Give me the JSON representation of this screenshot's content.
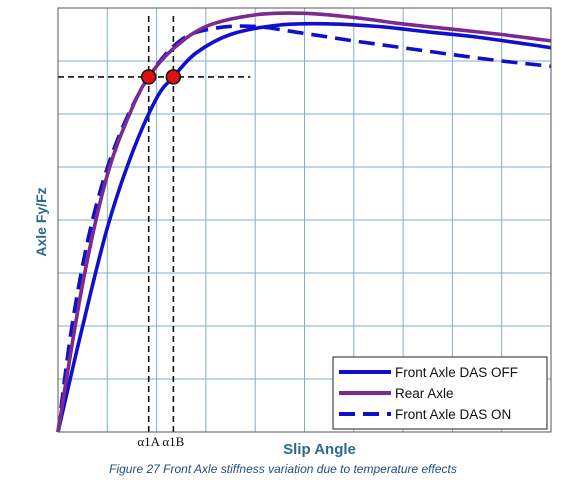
{
  "caption": "Figure 27 Front Axle stiffness variation due to temperature effects",
  "chart_data": {
    "type": "line",
    "title": "",
    "xlabel": "Slip Angle",
    "ylabel": "Axle Fy/Fz",
    "xlim": [
      0,
      10
    ],
    "ylim": [
      0,
      8
    ],
    "grid": true,
    "legend_position": "bottom-right",
    "x_tick_labels": [
      "α1A",
      "α1B"
    ],
    "markers": [
      {
        "name": "alpha-1A-point",
        "x": 1.84,
        "y": 6.7,
        "color": "#dd1111",
        "label": "α1A"
      },
      {
        "name": "alpha-1B-point",
        "x": 2.34,
        "y": 6.7,
        "color": "#dd1111",
        "label": "α1B"
      }
    ],
    "reference_y": 6.7,
    "series": [
      {
        "name": "Front Axle DAS OFF",
        "color": "#1010cc",
        "style": "solid",
        "x": [
          0,
          0.5,
          1.0,
          1.5,
          2.0,
          2.34,
          2.8,
          3.5,
          4.5,
          5.5,
          6.5,
          7.5,
          8.5,
          9.5,
          10
        ],
        "y": [
          0,
          2.0,
          3.85,
          5.25,
          6.3,
          6.7,
          7.15,
          7.5,
          7.68,
          7.7,
          7.65,
          7.55,
          7.45,
          7.32,
          7.25
        ]
      },
      {
        "name": "Rear Axle",
        "color": "#7a2a90",
        "style": "solid",
        "x": [
          0,
          0.5,
          1.0,
          1.5,
          1.84,
          2.3,
          3.0,
          4.0,
          5.0,
          6.0,
          7.0,
          8.0,
          9.0,
          10
        ],
        "y": [
          0,
          2.8,
          4.85,
          6.1,
          6.7,
          7.2,
          7.65,
          7.87,
          7.9,
          7.82,
          7.7,
          7.6,
          7.5,
          7.38
        ]
      },
      {
        "name": "Front Axle DAS ON",
        "color": "#1010cc",
        "style": "dashed",
        "x": [
          0,
          0.3,
          0.7,
          1.2,
          1.84,
          2.5,
          3.2,
          4.0,
          5.0,
          6.0,
          7.0,
          8.0,
          9.0,
          10
        ],
        "y": [
          0,
          2.1,
          4.0,
          5.5,
          6.7,
          7.4,
          7.62,
          7.65,
          7.52,
          7.38,
          7.25,
          7.12,
          7.0,
          6.9
        ]
      }
    ]
  }
}
